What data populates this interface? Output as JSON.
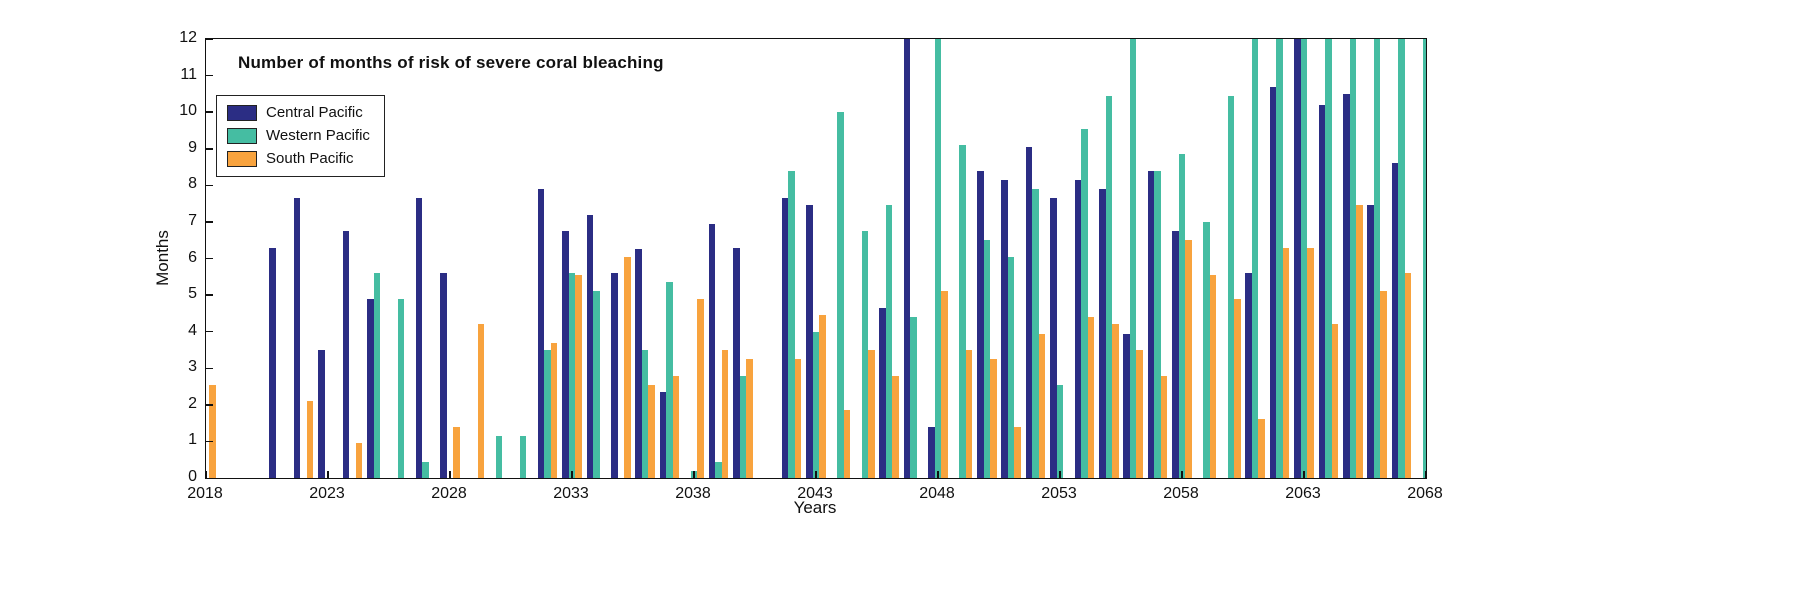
{
  "chart_data": {
    "type": "bar",
    "title": "Number of months of risk of severe coral bleaching",
    "xlabel": "Years",
    "ylabel": "Months",
    "ylim": [
      0,
      12
    ],
    "xlim": [
      2018,
      2068
    ],
    "grid": false,
    "legend_position": "top-left",
    "x_ticks": [
      2018,
      2023,
      2028,
      2033,
      2038,
      2043,
      2048,
      2053,
      2058,
      2063,
      2068
    ],
    "y_ticks": [
      0,
      1,
      2,
      3,
      4,
      5,
      6,
      7,
      8,
      9,
      10,
      11,
      12
    ],
    "years": [
      2018,
      2019,
      2020,
      2021,
      2022,
      2023,
      2024,
      2025,
      2026,
      2027,
      2028,
      2029,
      2030,
      2031,
      2032,
      2033,
      2034,
      2035,
      2036,
      2037,
      2038,
      2039,
      2040,
      2041,
      2042,
      2043,
      2044,
      2045,
      2046,
      2047,
      2048,
      2049,
      2050,
      2051,
      2052,
      2053,
      2054,
      2055,
      2056,
      2057,
      2058,
      2059,
      2060,
      2061,
      2062,
      2063,
      2064,
      2065,
      2066,
      2067,
      2068
    ],
    "series": [
      {
        "name": "Central Pacific",
        "color": "#2b2d84",
        "values": [
          0,
          0,
          0,
          6.3,
          7.65,
          3.5,
          6.75,
          4.9,
          0,
          7.65,
          5.6,
          0,
          0,
          0,
          7.9,
          6.75,
          7.2,
          5.6,
          6.25,
          2.35,
          0,
          6.95,
          6.3,
          0,
          7.65,
          7.45,
          0,
          0,
          4.65,
          12,
          1.4,
          0,
          8.4,
          8.15,
          9.05,
          7.65,
          8.15,
          7.9,
          3.95,
          8.4,
          6.75,
          0,
          0,
          5.6,
          10.7,
          12,
          10.2,
          10.5,
          7.45,
          8.6,
          0
        ]
      },
      {
        "name": "Western Pacific",
        "color": "#45bda2",
        "values": [
          0,
          0,
          0,
          0,
          0,
          0,
          0,
          5.6,
          4.9,
          0.45,
          0,
          0,
          1.15,
          1.15,
          3.5,
          5.6,
          5.1,
          0,
          3.5,
          5.35,
          0.2,
          0.45,
          2.8,
          0,
          8.4,
          4.0,
          10,
          6.75,
          7.45,
          4.4,
          12,
          9.1,
          6.5,
          6.05,
          7.9,
          2.55,
          9.55,
          10.45,
          12,
          8.4,
          8.85,
          7.0,
          10.45,
          12,
          12,
          12,
          12,
          12,
          12,
          12,
          12
        ]
      },
      {
        "name": "South Pacific",
        "color": "#f8a33e",
        "values": [
          2.55,
          0,
          0,
          0,
          2.1,
          0,
          0.95,
          0,
          0,
          0,
          1.4,
          4.2,
          0,
          0,
          3.7,
          5.55,
          0,
          6.05,
          2.55,
          2.8,
          4.9,
          3.5,
          3.25,
          0,
          3.25,
          4.45,
          1.85,
          3.5,
          2.8,
          0,
          5.1,
          3.5,
          3.25,
          1.4,
          3.95,
          0,
          4.4,
          4.2,
          3.5,
          2.8,
          6.5,
          5.55,
          4.9,
          1.6,
          6.3,
          6.3,
          4.2,
          7.45,
          5.1,
          5.6,
          0
        ]
      }
    ]
  }
}
